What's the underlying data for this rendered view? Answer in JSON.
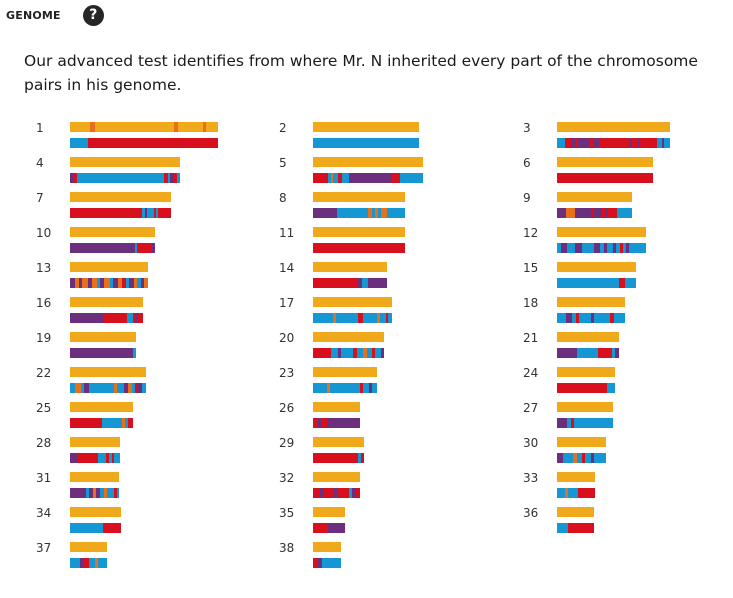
{
  "header": {
    "title": "GENOME",
    "help_icon": "question-circle-icon"
  },
  "description": "Our advanced test identifies from where Mr. N inherited every part of the chromosome pairs in his genome.",
  "colors": {
    "yellow": "#f0a91b",
    "blue": "#1597d4",
    "red": "#d8101e",
    "purple": "#6b2f7e",
    "orange": "#e8701b",
    "lblue": "#5aa0c8"
  },
  "chromosomes": [
    {
      "num": "1",
      "len": 148,
      "top": [
        [
          "y",
          20
        ],
        [
          "o",
          5
        ],
        [
          "y",
          79
        ],
        [
          "o",
          4
        ],
        [
          "y",
          25
        ],
        [
          "o",
          3
        ],
        [
          "y",
          12
        ]
      ],
      "bot": [
        [
          "b",
          18
        ],
        [
          "r",
          130
        ]
      ]
    },
    {
      "num": "2",
      "len": 106,
      "top": [
        [
          "y",
          106
        ]
      ],
      "bot": [
        [
          "b",
          106
        ]
      ]
    },
    {
      "num": "3",
      "len": 113,
      "top": [
        [
          "y",
          113
        ]
      ],
      "bot": [
        [
          "b",
          8
        ],
        [
          "r",
          6
        ],
        [
          "p",
          4
        ],
        [
          "r",
          3
        ],
        [
          "p",
          12
        ],
        [
          "r",
          4
        ],
        [
          "p",
          5
        ],
        [
          "r",
          30
        ],
        [
          "p",
          3
        ],
        [
          "r",
          5
        ],
        [
          "p",
          2
        ],
        [
          "r",
          18
        ],
        [
          "b",
          5
        ],
        [
          "p",
          2
        ],
        [
          "b",
          6
        ]
      ]
    },
    {
      "num": "4",
      "len": 110,
      "top": [
        [
          "y",
          110
        ]
      ],
      "bot": [
        [
          "p",
          3
        ],
        [
          "r",
          4
        ],
        [
          "b",
          87
        ],
        [
          "r",
          4
        ],
        [
          "b",
          2
        ],
        [
          "p",
          4
        ],
        [
          "r",
          3
        ],
        [
          "b",
          3
        ]
      ]
    },
    {
      "num": "5",
      "len": 110,
      "top": [
        [
          "y",
          110
        ]
      ],
      "bot": [
        [
          "r",
          15
        ],
        [
          "b",
          3
        ],
        [
          "o",
          2
        ],
        [
          "b",
          5
        ],
        [
          "r",
          4
        ],
        [
          "b",
          7
        ],
        [
          "p",
          43
        ],
        [
          "r",
          8
        ],
        [
          "b",
          23
        ]
      ]
    },
    {
      "num": "6",
      "len": 96,
      "top": [
        [
          "y",
          96
        ]
      ],
      "bot": [
        [
          "r",
          96
        ]
      ]
    },
    {
      "num": "7",
      "len": 101,
      "top": [
        [
          "y",
          101
        ]
      ],
      "bot": [
        [
          "r",
          72
        ],
        [
          "b",
          3
        ],
        [
          "p",
          2
        ],
        [
          "b",
          7
        ],
        [
          "r",
          2
        ],
        [
          "b",
          2
        ],
        [
          "r",
          13
        ]
      ]
    },
    {
      "num": "8",
      "len": 92,
      "top": [
        [
          "y",
          92
        ]
      ],
      "bot": [
        [
          "p",
          24
        ],
        [
          "b",
          31
        ],
        [
          "o",
          4
        ],
        [
          "b",
          3
        ],
        [
          "o",
          3
        ],
        [
          "b",
          3
        ],
        [
          "o",
          6
        ],
        [
          "b",
          18
        ]
      ]
    },
    {
      "num": "9",
      "len": 75,
      "top": [
        [
          "y",
          75
        ]
      ],
      "bot": [
        [
          "p",
          9
        ],
        [
          "o",
          9
        ],
        [
          "p",
          16
        ],
        [
          "r",
          3
        ],
        [
          "p",
          8
        ],
        [
          "r",
          3
        ],
        [
          "p",
          3
        ],
        [
          "r",
          9
        ],
        [
          "b",
          15
        ]
      ]
    },
    {
      "num": "10",
      "len": 85,
      "top": [
        [
          "y",
          85
        ]
      ],
      "bot": [
        [
          "p",
          65
        ],
        [
          "b",
          2
        ],
        [
          "r",
          15
        ],
        [
          "p",
          3
        ]
      ]
    },
    {
      "num": "11",
      "len": 92,
      "top": [
        [
          "y",
          92
        ]
      ],
      "bot": [
        [
          "r",
          92
        ]
      ]
    },
    {
      "num": "12",
      "len": 89,
      "top": [
        [
          "y",
          89
        ]
      ],
      "bot": [
        [
          "b",
          4
        ],
        [
          "p",
          6
        ],
        [
          "b",
          8
        ],
        [
          "p",
          7
        ],
        [
          "b",
          12
        ],
        [
          "p",
          6
        ],
        [
          "b",
          4
        ],
        [
          "p",
          3
        ],
        [
          "b",
          6
        ],
        [
          "p",
          3
        ],
        [
          "b",
          4
        ],
        [
          "r",
          3
        ],
        [
          "b",
          3
        ],
        [
          "p",
          3
        ],
        [
          "b",
          17
        ]
      ]
    },
    {
      "num": "13",
      "len": 78,
      "top": [
        [
          "y",
          78
        ]
      ],
      "bot": [
        [
          "p",
          5
        ],
        [
          "o",
          4
        ],
        [
          "p",
          3
        ],
        [
          "o",
          6
        ],
        [
          "p",
          4
        ],
        [
          "o",
          5
        ],
        [
          "b",
          3
        ],
        [
          "p",
          4
        ],
        [
          "o",
          6
        ],
        [
          "b",
          3
        ],
        [
          "p",
          5
        ],
        [
          "o",
          4
        ],
        [
          "r",
          4
        ],
        [
          "b",
          3
        ],
        [
          "p",
          5
        ],
        [
          "o",
          3
        ],
        [
          "b",
          4
        ],
        [
          "p",
          3
        ],
        [
          "o",
          4
        ]
      ]
    },
    {
      "num": "14",
      "len": 74,
      "top": [
        [
          "y",
          74
        ]
      ],
      "bot": [
        [
          "r",
          45
        ],
        [
          "p",
          4
        ],
        [
          "b",
          6
        ],
        [
          "p",
          19
        ]
      ]
    },
    {
      "num": "15",
      "len": 79,
      "top": [
        [
          "y",
          79
        ]
      ],
      "bot": [
        [
          "b",
          62
        ],
        [
          "r",
          6
        ],
        [
          "b",
          11
        ]
      ]
    },
    {
      "num": "16",
      "len": 73,
      "top": [
        [
          "y",
          73
        ]
      ],
      "bot": [
        [
          "p",
          33
        ],
        [
          "r",
          24
        ],
        [
          "b",
          6
        ],
        [
          "r",
          3
        ],
        [
          "p",
          2
        ],
        [
          "r",
          5
        ]
      ]
    },
    {
      "num": "17",
      "len": 79,
      "top": [
        [
          "y",
          79
        ]
      ],
      "bot": [
        [
          "b",
          20
        ],
        [
          "o",
          3
        ],
        [
          "b",
          22
        ],
        [
          "r",
          5
        ],
        [
          "b",
          14
        ],
        [
          "o",
          3
        ],
        [
          "b",
          6
        ],
        [
          "r",
          2
        ],
        [
          "b",
          4
        ]
      ]
    },
    {
      "num": "18",
      "len": 68,
      "top": [
        [
          "y",
          68
        ]
      ],
      "bot": [
        [
          "b",
          9
        ],
        [
          "p",
          6
        ],
        [
          "b",
          4
        ],
        [
          "r",
          3
        ],
        [
          "b",
          12
        ],
        [
          "p",
          3
        ],
        [
          "b",
          16
        ],
        [
          "r",
          4
        ],
        [
          "b",
          11
        ]
      ]
    },
    {
      "num": "19",
      "len": 66,
      "top": [
        [
          "y",
          66
        ]
      ],
      "bot": [
        [
          "p",
          63
        ],
        [
          "b",
          3
        ]
      ]
    },
    {
      "num": "20",
      "len": 71,
      "top": [
        [
          "y",
          71
        ]
      ],
      "bot": [
        [
          "r",
          18
        ],
        [
          "b",
          7
        ],
        [
          "p",
          3
        ],
        [
          "b",
          12
        ],
        [
          "r",
          4
        ],
        [
          "b",
          6
        ],
        [
          "o",
          4
        ],
        [
          "b",
          5
        ],
        [
          "r",
          3
        ],
        [
          "b",
          6
        ],
        [
          "p",
          3
        ]
      ]
    },
    {
      "num": "21",
      "len": 62,
      "top": [
        [
          "y",
          62
        ]
      ],
      "bot": [
        [
          "p",
          20
        ],
        [
          "b",
          21
        ],
        [
          "r",
          14
        ],
        [
          "b",
          3
        ],
        [
          "p",
          4
        ]
      ]
    },
    {
      "num": "22",
      "len": 76,
      "top": [
        [
          "y",
          76
        ]
      ],
      "bot": [
        [
          "b",
          5
        ],
        [
          "o",
          6
        ],
        [
          "b",
          3
        ],
        [
          "p",
          5
        ],
        [
          "b",
          25
        ],
        [
          "o",
          3
        ],
        [
          "b",
          7
        ],
        [
          "p",
          4
        ],
        [
          "o",
          4
        ],
        [
          "b",
          3
        ],
        [
          "r",
          3
        ],
        [
          "p",
          4
        ],
        [
          "b",
          4
        ]
      ]
    },
    {
      "num": "23",
      "len": 64,
      "top": [
        [
          "y",
          64
        ]
      ],
      "bot": [
        [
          "b",
          14
        ],
        [
          "o",
          3
        ],
        [
          "b",
          30
        ],
        [
          "r",
          3
        ],
        [
          "b",
          6
        ],
        [
          "p",
          3
        ],
        [
          "b",
          5
        ]
      ]
    },
    {
      "num": "24",
      "len": 58,
      "top": [
        [
          "y",
          58
        ]
      ],
      "bot": [
        [
          "r",
          50
        ],
        [
          "b",
          8
        ]
      ]
    },
    {
      "num": "25",
      "len": 63,
      "top": [
        [
          "y",
          63
        ]
      ],
      "bot": [
        [
          "r",
          32
        ],
        [
          "b",
          20
        ],
        [
          "o",
          3
        ],
        [
          "b",
          3
        ],
        [
          "r",
          5
        ]
      ]
    },
    {
      "num": "26",
      "len": 47,
      "top": [
        [
          "y",
          47
        ]
      ],
      "bot": [
        [
          "r",
          5
        ],
        [
          "p",
          4
        ],
        [
          "r",
          5
        ],
        [
          "p",
          33
        ]
      ]
    },
    {
      "num": "27",
      "len": 56,
      "top": [
        [
          "y",
          56
        ]
      ],
      "bot": [
        [
          "p",
          10
        ],
        [
          "b",
          4
        ],
        [
          "r",
          3
        ],
        [
          "b",
          39
        ]
      ]
    },
    {
      "num": "28",
      "len": 50,
      "top": [
        [
          "y",
          50
        ]
      ],
      "bot": [
        [
          "p",
          8
        ],
        [
          "r",
          20
        ],
        [
          "b",
          8
        ],
        [
          "r",
          3
        ],
        [
          "b",
          3
        ],
        [
          "r",
          2
        ],
        [
          "b",
          6
        ]
      ]
    },
    {
      "num": "29",
      "len": 51,
      "top": [
        [
          "y",
          51
        ]
      ],
      "bot": [
        [
          "r",
          45
        ],
        [
          "b",
          3
        ],
        [
          "r",
          3
        ]
      ]
    },
    {
      "num": "30",
      "len": 49,
      "top": [
        [
          "y",
          49
        ]
      ],
      "bot": [
        [
          "p",
          6
        ],
        [
          "b",
          10
        ],
        [
          "o",
          4
        ],
        [
          "b",
          5
        ],
        [
          "r",
          3
        ],
        [
          "b",
          6
        ],
        [
          "p",
          3
        ],
        [
          "b",
          12
        ]
      ]
    },
    {
      "num": "31",
      "len": 49,
      "top": [
        [
          "y",
          49
        ]
      ],
      "bot": [
        [
          "p",
          16
        ],
        [
          "b",
          3
        ],
        [
          "p",
          4
        ],
        [
          "o",
          3
        ],
        [
          "p",
          4
        ],
        [
          "b",
          4
        ],
        [
          "o",
          3
        ],
        [
          "b",
          7
        ],
        [
          "r",
          3
        ],
        [
          "b",
          2
        ]
      ]
    },
    {
      "num": "32",
      "len": 47,
      "top": [
        [
          "y",
          47
        ]
      ],
      "bot": [
        [
          "r",
          7
        ],
        [
          "p",
          4
        ],
        [
          "r",
          10
        ],
        [
          "p",
          3
        ],
        [
          "r",
          12
        ],
        [
          "b",
          3
        ],
        [
          "p",
          4
        ],
        [
          "r",
          4
        ]
      ]
    },
    {
      "num": "33",
      "len": 38,
      "top": [
        [
          "y",
          38
        ]
      ],
      "bot": [
        [
          "b",
          8
        ],
        [
          "o",
          3
        ],
        [
          "b",
          10
        ],
        [
          "r",
          17
        ]
      ]
    },
    {
      "num": "34",
      "len": 51,
      "top": [
        [
          "y",
          51
        ]
      ],
      "bot": [
        [
          "b",
          33
        ],
        [
          "r",
          18
        ]
      ]
    },
    {
      "num": "35",
      "len": 32,
      "top": [
        [
          "y",
          32
        ]
      ],
      "bot": [
        [
          "r",
          15
        ],
        [
          "p",
          17
        ]
      ]
    },
    {
      "num": "36",
      "len": 37,
      "top": [
        [
          "y",
          37
        ]
      ],
      "bot": [
        [
          "b",
          11
        ],
        [
          "r",
          26
        ]
      ]
    },
    {
      "num": "37",
      "len": 37,
      "top": [
        [
          "y",
          37
        ]
      ],
      "bot": [
        [
          "b",
          10
        ],
        [
          "p",
          3
        ],
        [
          "r",
          6
        ],
        [
          "b",
          6
        ],
        [
          "o",
          3
        ],
        [
          "b",
          9
        ]
      ]
    },
    {
      "num": "38",
      "len": 28,
      "top": [
        [
          "y",
          28
        ]
      ],
      "bot": [
        [
          "r",
          5
        ],
        [
          "p",
          4
        ],
        [
          "b",
          19
        ]
      ]
    }
  ]
}
